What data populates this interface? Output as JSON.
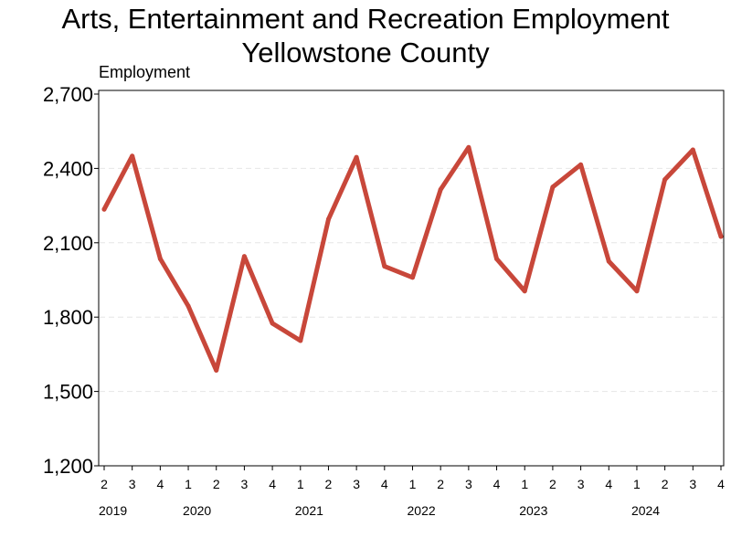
{
  "chart_data": {
    "type": "line",
    "title": "Arts, Entertainment and Recreation Employment",
    "subtitle": "Yellowstone County",
    "xlabel": "",
    "ylabel": "Employment",
    "ylim": [
      1200,
      2700
    ],
    "yticks": [
      1200,
      1500,
      1800,
      2100,
      2400,
      2700
    ],
    "ytick_labels": [
      "1,200",
      "1,500",
      "1,800",
      "2,100",
      "2,400",
      "2,700"
    ],
    "grid": "horizontal dashed",
    "colors": {
      "line": "#c8473a",
      "grid": "#e6e6e6",
      "axis": "#000000"
    },
    "x_quarters": [
      "2",
      "3",
      "4",
      "1",
      "2",
      "3",
      "4",
      "1",
      "2",
      "3",
      "4",
      "1",
      "2",
      "3",
      "4",
      "1",
      "2",
      "3",
      "4",
      "1",
      "2",
      "3",
      "4"
    ],
    "years": [
      {
        "label": "2019",
        "index": 0
      },
      {
        "label": "2020",
        "index": 3
      },
      {
        "label": "2021",
        "index": 7
      },
      {
        "label": "2022",
        "index": 11
      },
      {
        "label": "2023",
        "index": 15
      },
      {
        "label": "2024",
        "index": 19
      }
    ],
    "series": [
      {
        "name": "",
        "values": [
          2235,
          2450,
          2035,
          1845,
          1585,
          2045,
          1775,
          1705,
          2195,
          2445,
          2005,
          1960,
          2315,
          2485,
          2035,
          1905,
          2325,
          2415,
          2025,
          1905,
          2355,
          2475,
          2125
        ]
      }
    ]
  }
}
